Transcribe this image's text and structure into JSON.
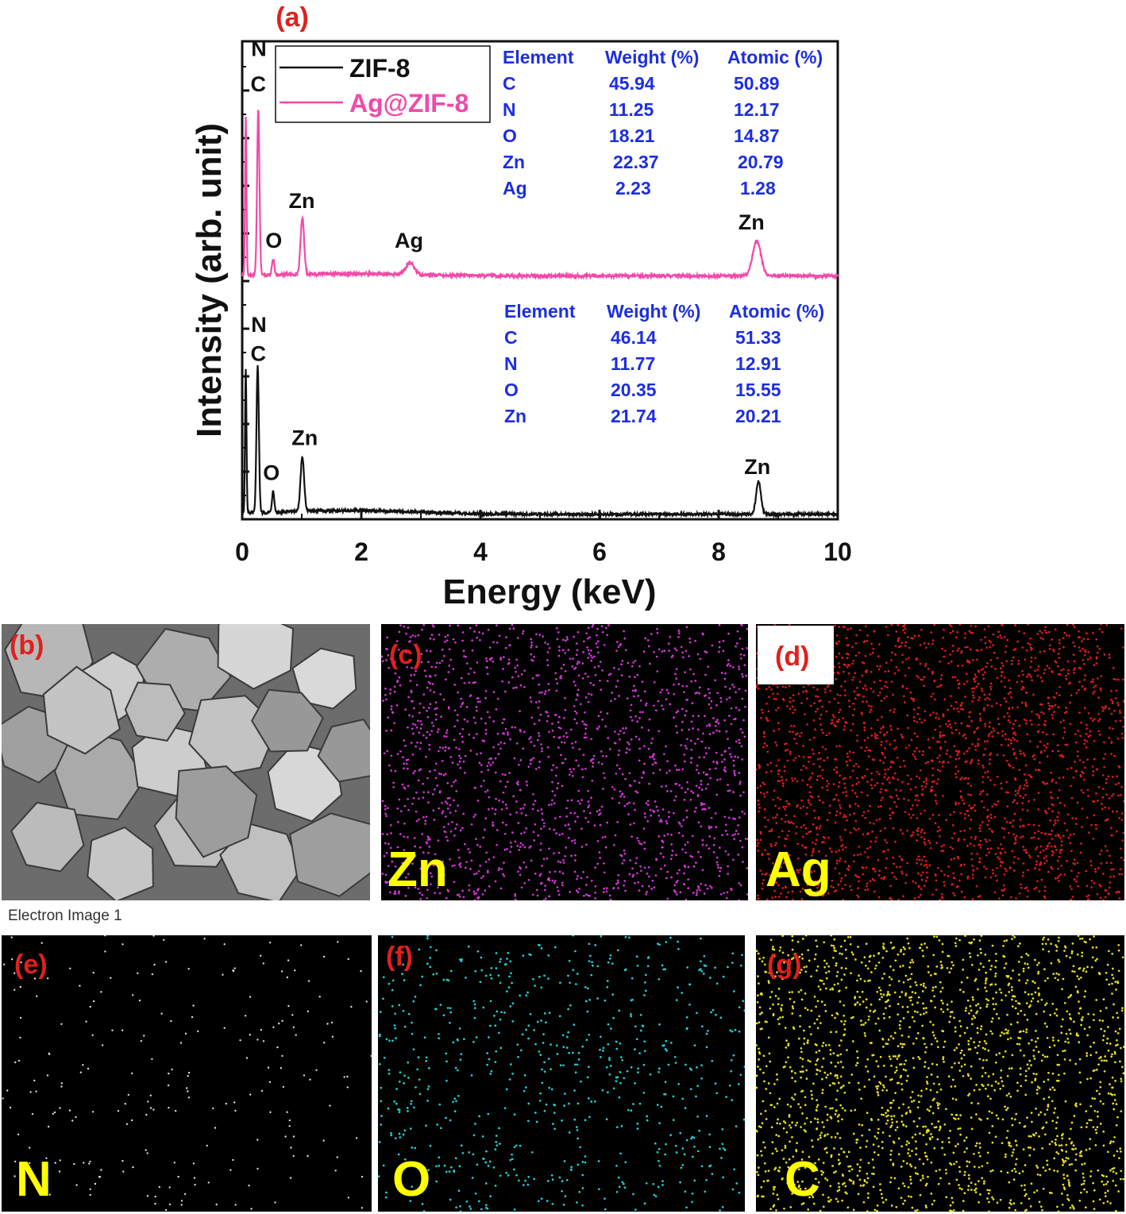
{
  "chart_data": {
    "type": "line",
    "panel_label": "(a)",
    "xlabel": "Energy (keV)",
    "ylabel": "Intensity (arb. unit)",
    "xlim": [
      0,
      10
    ],
    "xticks": [
      0,
      2,
      4,
      6,
      8,
      10
    ],
    "grid": false,
    "legend": "top-left",
    "series": [
      {
        "name": "Ag@ZIF-8",
        "color": "#f24aa8",
        "peaks": [
          {
            "x": 0.06,
            "h": 0.95,
            "w": 0.012
          },
          {
            "x": 0.27,
            "h": 1.0,
            "w": 0.02
          },
          {
            "x": 0.52,
            "h": 0.09,
            "w": 0.02
          },
          {
            "x": 1.01,
            "h": 0.34,
            "w": 0.03
          },
          {
            "x": 2.82,
            "h": 0.07,
            "w": 0.07
          },
          {
            "x": 8.64,
            "h": 0.21,
            "w": 0.07
          }
        ],
        "annotations": [
          {
            "label": "N",
            "x": 0.28,
            "y": 1.33
          },
          {
            "label": "C",
            "x": 0.27,
            "y": 1.12
          },
          {
            "label": "O",
            "x": 0.53,
            "y": 0.18
          },
          {
            "label": "Zn",
            "x": 1.0,
            "y": 0.42
          },
          {
            "label": "Ag",
            "x": 2.8,
            "y": 0.18
          },
          {
            "label": "Zn",
            "x": 8.55,
            "y": 0.29
          }
        ],
        "table": {
          "headers": [
            "Element",
            "Weight (%)",
            "Atomic (%)"
          ],
          "rows": [
            [
              "C",
              "45.94",
              "50.89"
            ],
            [
              "N",
              "11.25",
              "12.17"
            ],
            [
              "O",
              "18.21",
              "14.87"
            ],
            [
              "Zn",
              "22.37",
              "20.79"
            ],
            [
              "Ag",
              "2.23",
              "1.28"
            ]
          ]
        }
      },
      {
        "name": "ZIF-8",
        "color": "#111111",
        "peaks": [
          {
            "x": 0.06,
            "h": 0.95,
            "w": 0.012
          },
          {
            "x": 0.26,
            "h": 0.98,
            "w": 0.02
          },
          {
            "x": 0.52,
            "h": 0.14,
            "w": 0.02
          },
          {
            "x": 1.01,
            "h": 0.36,
            "w": 0.03
          },
          {
            "x": 8.67,
            "h": 0.22,
            "w": 0.04
          }
        ],
        "annotations": [
          {
            "label": "N",
            "x": 0.28,
            "y": 1.22
          },
          {
            "label": "C",
            "x": 0.27,
            "y": 1.03
          },
          {
            "label": "O",
            "x": 0.49,
            "y": 0.24
          },
          {
            "label": "Zn",
            "x": 1.05,
            "y": 0.47
          },
          {
            "label": "Zn",
            "x": 8.65,
            "y": 0.28
          }
        ],
        "table": {
          "headers": [
            "Element",
            "Weight (%)",
            "Atomic (%)"
          ],
          "rows": [
            [
              "C",
              "46.14",
              "51.33"
            ],
            [
              "N",
              "11.77",
              "12.91"
            ],
            [
              "O",
              "20.35",
              "15.55"
            ],
            [
              "Zn",
              "21.74",
              "20.21"
            ]
          ]
        }
      }
    ]
  },
  "panels": {
    "b": {
      "label": "(b)",
      "caption": "Electron Image 1"
    },
    "c": {
      "label": "(c)",
      "element": "Zn",
      "dot_color": "#d535d8",
      "density": 1700
    },
    "d": {
      "label": "(d)",
      "element": "Ag",
      "dot_color": "#e01a1a",
      "density": 2300
    },
    "e": {
      "label": "(e)",
      "element": "N",
      "dot_color": "#dddddd",
      "density": 230
    },
    "f": {
      "label": "(f)",
      "element": "O",
      "dot_color": "#1fd1d6",
      "density": 700
    },
    "g": {
      "label": "(g)",
      "element": "C",
      "dot_color": "#e6e01f",
      "density": 2000
    }
  },
  "colors": {
    "annotation_text": "#111111",
    "table_text": "#1c2ee0",
    "panel_label": "#e0201e",
    "element_label": "#ffff00"
  }
}
